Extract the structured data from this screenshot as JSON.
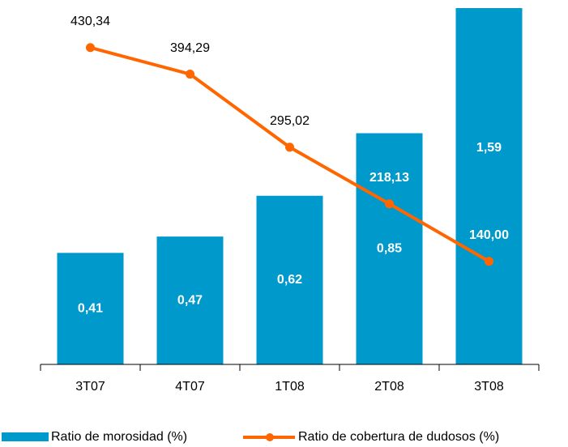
{
  "chart_data": {
    "type": "bar-line",
    "categories": [
      "3T07",
      "4T07",
      "1T08",
      "2T08",
      "3T08"
    ],
    "series": [
      {
        "name": "Ratio de morosidad (%)",
        "type": "bar",
        "color": "#0099cc",
        "values": [
          0.41,
          0.47,
          0.62,
          0.85,
          1.59
        ],
        "value_labels": [
          "0,41",
          "0,47",
          "0,62",
          "0,85",
          "1,59"
        ]
      },
      {
        "name": "Ratio de cobertura de dudosos (%)",
        "type": "line",
        "axis": "y2",
        "color": "#ff6600",
        "values": [
          430.34,
          394.29,
          295.02,
          218.13,
          140.0
        ],
        "value_labels": [
          "430,34",
          "394,29",
          "295,02",
          "218,13",
          "140,00"
        ]
      }
    ],
    "ylim": [
      0,
      1.31
    ],
    "y2lim": [
      0,
      484
    ],
    "legend": "bottom"
  }
}
